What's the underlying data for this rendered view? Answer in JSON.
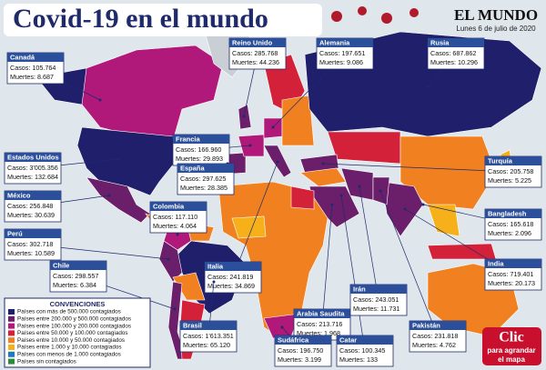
{
  "header": {
    "title": "Covid-19 en el mundo",
    "logo": "EL MUNDO",
    "date": "Lunes 6 de julio de 2020"
  },
  "callouts": [
    {
      "country": "Canadá",
      "cases": "Casos: 105.764",
      "deaths": "Muertes: 8.687"
    },
    {
      "country": "Reino Unido",
      "cases": "Casos: 285.768",
      "deaths": "Muertes: 44.236"
    },
    {
      "country": "Alemania",
      "cases": "Casos: 197.651",
      "deaths": "Muertes: 9.086"
    },
    {
      "country": "Rusia",
      "cases": "Casos: 687.862",
      "deaths": "Muertes: 10.296"
    },
    {
      "country": "Francia",
      "cases": "Casos: 166.960",
      "deaths": "Muertes: 29.893"
    },
    {
      "country": "España",
      "cases": "Casos: 297.625",
      "deaths": "Muertes: 28.385"
    },
    {
      "country": "Estados Unidos",
      "cases": "Casos: 3'005.356",
      "deaths": "Muertes: 132.684"
    },
    {
      "country": "México",
      "cases": "Casos: 256.848",
      "deaths": "Muertes: 30.639"
    },
    {
      "country": "Colombia",
      "cases": "Casos: 117.110",
      "deaths": "Muertes: 4.064"
    },
    {
      "country": "Perú",
      "cases": "Casos: 302.718",
      "deaths": "Muertes: 10.589"
    },
    {
      "country": "Chile",
      "cases": "Casos: 298.557",
      "deaths": "Muertes: 6.384"
    },
    {
      "country": "Italia",
      "cases": "Casos: 241.819",
      "deaths": "Muertes: 34.869"
    },
    {
      "country": "Brasil",
      "cases": "Casos: 1'613.351",
      "deaths": "Muertes: 65.120"
    },
    {
      "country": "Arabia Saudita",
      "cases": "Casos: 213.716",
      "deaths": "Muertes: 1.968"
    },
    {
      "country": "Sudáfrica",
      "cases": "Casos: 196.750",
      "deaths": "Muertes: 3.199"
    },
    {
      "country": "Catar",
      "cases": "Casos: 100.345",
      "deaths": "Muertes: 133"
    },
    {
      "country": "Irán",
      "cases": "Casos: 243.051",
      "deaths": "Muertes: 11.731"
    },
    {
      "country": "Pakistán",
      "cases": "Casos: 231.818",
      "deaths": "Muertes: 4.762"
    },
    {
      "country": "India",
      "cases": "Casos: 719.401",
      "deaths": "Muertes: 20.173"
    },
    {
      "country": "Bangladesh",
      "cases": "Casos: 165.618",
      "deaths": "Muertes: 2.096"
    },
    {
      "country": "Turquía",
      "cases": "Casos: 205.758",
      "deaths": "Muertes: 5.225"
    }
  ],
  "legend": {
    "title": "CONVENCIONES",
    "items": [
      {
        "label": "Países con más de 500.000 contagiados",
        "color": "#1f1f6b"
      },
      {
        "label": "Países entre 200.000 y 500.000 contagiados",
        "color": "#6b1f6b"
      },
      {
        "label": "Países entre 100.000 y 200.000 contagiados",
        "color": "#b0197a"
      },
      {
        "label": "Países entre 50.000 y 100.000 contagiados",
        "color": "#d4213a"
      },
      {
        "label": "Países entre 10.000 y 50.000 contagiados",
        "color": "#f08020"
      },
      {
        "label": "Países entre 1.000 y 10.000 contagiados",
        "color": "#f5b01a"
      },
      {
        "label": "Países con menos de 1.000 contagiados",
        "color": "#1f7ac0"
      },
      {
        "label": "Países sin contagiados",
        "color": "#2e8b3a"
      }
    ]
  },
  "button": {
    "big": "Clic",
    "line1": "para agrandar",
    "line2": "el mapa"
  }
}
